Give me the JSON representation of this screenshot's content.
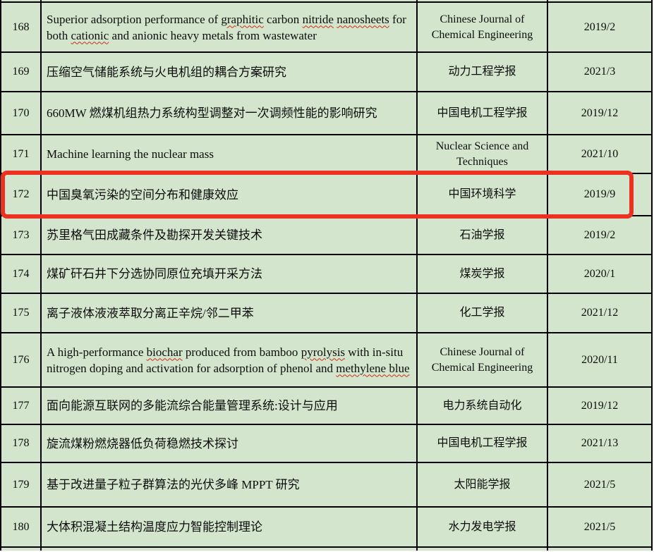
{
  "table": {
    "cell_background": "#d3e6cd",
    "border_color": "#000000",
    "highlight_color": "#ec3123",
    "misspell_underline_color": "#cf2a14",
    "columns": [
      "number",
      "title",
      "journal",
      "date"
    ],
    "rows": [
      {
        "number": "168",
        "title": [
          {
            "t": "Superior adsorption performance of "
          },
          {
            "t": "graphitic",
            "miss": true
          },
          {
            "t": " carbon "
          },
          {
            "t": "nitride",
            "miss": true
          },
          {
            "t": " "
          },
          {
            "t": "nanosheets",
            "miss": true
          },
          {
            "t": " for both "
          },
          {
            "t": "cationic",
            "miss": true
          },
          {
            "t": " and anionic heavy metals from wastewater"
          }
        ],
        "journal": "Chinese Journal of Chemical Engineering",
        "date": "2019/2",
        "highlighted": false
      },
      {
        "number": "169",
        "title": [
          {
            "t": "压缩空气储能系统与火电机组的耦合方案研究"
          }
        ],
        "journal": "动力工程学报",
        "date": "2021/3",
        "highlighted": false
      },
      {
        "number": "170",
        "title": [
          {
            "t": "660MW 燃煤机组热力系统构型调整对一次调频性能的影响研究"
          }
        ],
        "journal": "中国电机工程学报",
        "date": "2019/12",
        "highlighted": false
      },
      {
        "number": "171",
        "title": [
          {
            "t": "Machine learning the nuclear mass"
          }
        ],
        "journal": "Nuclear Science and Techniques",
        "date": "2021/10",
        "highlighted": false
      },
      {
        "number": "172",
        "title": [
          {
            "t": "中国臭氧污染的空间分布和健康效应"
          }
        ],
        "journal": "中国环境科学",
        "date": "2019/9",
        "highlighted": true
      },
      {
        "number": "173",
        "title": [
          {
            "t": "苏里格气田成藏条件及勘探开发关键技术"
          }
        ],
        "journal": "石油学报",
        "date": "2019/2",
        "highlighted": false
      },
      {
        "number": "174",
        "title": [
          {
            "t": "煤矿矸石井下分选协同原位充填开采方法"
          }
        ],
        "journal": "煤炭学报",
        "date": "2020/1",
        "highlighted": false
      },
      {
        "number": "175",
        "title": [
          {
            "t": "离子液体液液萃取分离正辛烷/邻二甲苯"
          }
        ],
        "journal": "化工学报",
        "date": "2021/12",
        "highlighted": false
      },
      {
        "number": "176",
        "title": [
          {
            "t": "A high-performance "
          },
          {
            "t": "biochar",
            "miss": true
          },
          {
            "t": " produced from bamboo "
          },
          {
            "t": "pyrolysis",
            "miss": true
          },
          {
            "t": " with in-situ nitrogen doping and activation for adsorption of phenol and "
          },
          {
            "t": "methylene blue",
            "miss": true
          }
        ],
        "journal": "Chinese Journal of Chemical Engineering",
        "date": "2020/11",
        "highlighted": false
      },
      {
        "number": "177",
        "title": [
          {
            "t": "面向能源互联网的多能流综合能量管理系统:设计与应用"
          }
        ],
        "journal": "电力系统自动化",
        "date": "2019/12",
        "highlighted": false
      },
      {
        "number": "178",
        "title": [
          {
            "t": "旋流煤粉燃烧器低负荷稳燃技术探讨"
          }
        ],
        "journal": "中国电机工程学报",
        "date": "2021/13",
        "highlighted": false
      },
      {
        "number": "179",
        "title": [
          {
            "t": "基于改进量子粒子群算法的光伏多峰 MPPT 研究"
          }
        ],
        "journal": "太阳能学报",
        "date": "2021/5",
        "highlighted": false
      },
      {
        "number": "180",
        "title": [
          {
            "t": "大体积混凝土结构温度应力智能控制理论"
          }
        ],
        "journal": "水力发电学报",
        "date": "2021/5",
        "highlighted": false
      }
    ]
  }
}
